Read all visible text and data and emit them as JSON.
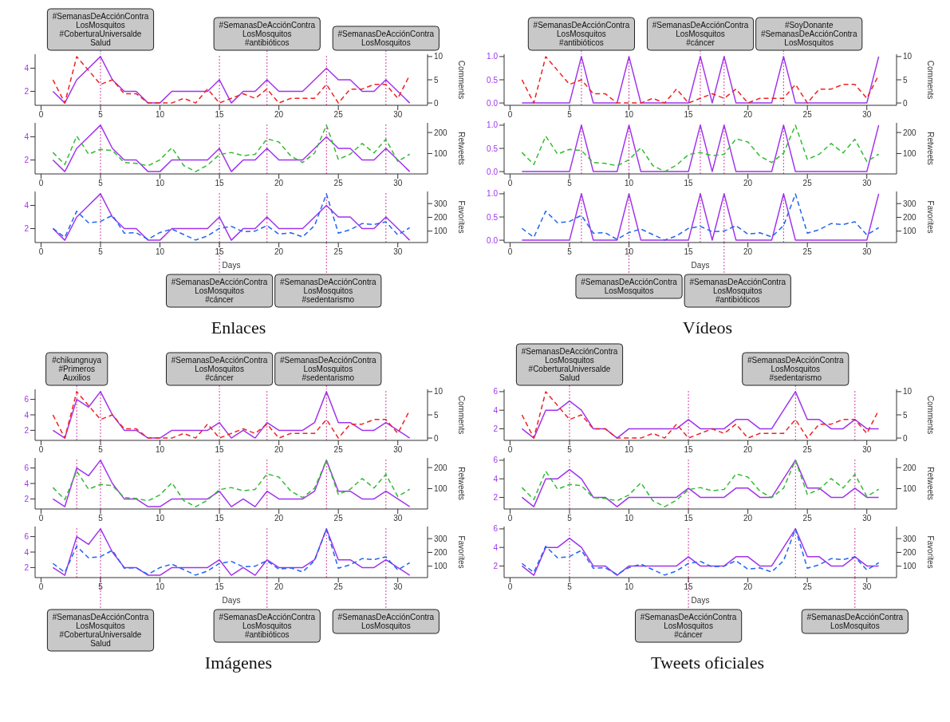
{
  "chart_data": [
    {
      "type": "line",
      "x": [
        1,
        2,
        3,
        4,
        5,
        6,
        7,
        8,
        9,
        10,
        11,
        12,
        13,
        14,
        15,
        16,
        17,
        18,
        19,
        20,
        21,
        22,
        23,
        24,
        25,
        26,
        27,
        28,
        29,
        30,
        31
      ],
      "xlim": [
        -0.5,
        32.5
      ],
      "xticks": [
        0,
        5,
        10,
        15,
        20,
        25,
        30
      ],
      "ylim": [
        0.8,
        5.2
      ],
      "yticks": [
        2,
        4
      ],
      "y2lim": [
        -0.5,
        10.5
      ],
      "y2ticks": [
        0,
        5,
        10
      ],
      "y2label": "Comments",
      "series": [
        {
          "color": "#a033ee",
          "line_style": "solid",
          "values": [
            2,
            1,
            3,
            4,
            5,
            3,
            2,
            2,
            1,
            1,
            2,
            2,
            2,
            2,
            3,
            1,
            2,
            2,
            3,
            2,
            2,
            2,
            3,
            4,
            3,
            3,
            2,
            2,
            3,
            2,
            1
          ]
        },
        {
          "color": "#ee2222",
          "line_style": "dashed",
          "axis": "y2",
          "values": [
            5,
            0,
            10,
            7,
            4,
            5,
            2,
            2,
            0,
            0,
            0,
            1,
            0,
            3,
            0,
            1,
            2,
            1,
            3,
            0,
            1,
            1,
            1,
            4,
            0,
            3,
            3,
            4,
            4,
            1,
            6
          ]
        }
      ],
      "ref_lines": [
        {
          "axis": "x",
          "value": 5,
          "color": "#d040a0",
          "line_style": "dotted",
          "label": "#SemanasDeAcciónContra\nLosMosquitos\n#CoberturaUniversalde\nSalud"
        },
        {
          "axis": "x",
          "value": 15,
          "color": "#d040a0",
          "line_style": "dotted"
        },
        {
          "axis": "x",
          "value": 19,
          "color": "#d040a0",
          "line_style": "dotted",
          "label": "#SemanasDeAcciónContra\nLosMosquitos\n#antibióticos"
        },
        {
          "axis": "x",
          "value": 24,
          "color": "#d040a0",
          "line_style": "dotted"
        },
        {
          "axis": "x",
          "value": 29,
          "color": "#d040a0",
          "line_style": "dotted",
          "label": "#SemanasDeAcciónContra\nLosMosquitos"
        }
      ]
    },
    {
      "type": "line",
      "x": [
        1,
        2,
        3,
        4,
        5,
        6,
        7,
        8,
        9,
        10,
        11,
        12,
        13,
        14,
        15,
        16,
        17,
        18,
        19,
        20,
        21,
        22,
        23,
        24,
        25,
        26,
        27,
        28,
        29,
        30,
        31
      ],
      "xlim": [
        -0.5,
        32.5
      ],
      "xticks": [
        0,
        5,
        10,
        15,
        20,
        25,
        30
      ],
      "ylim": [
        0.8,
        5.2
      ],
      "yticks": [
        2,
        4
      ],
      "y2lim": [
        3,
        246
      ],
      "y2ticks": [
        100,
        200
      ],
      "y2label": "Retweets",
      "series": [
        {
          "color": "#a033ee",
          "line_style": "solid",
          "values": [
            2,
            1,
            3,
            4,
            5,
            3,
            2,
            2,
            1,
            1,
            2,
            2,
            2,
            2,
            3,
            1,
            2,
            2,
            3,
            2,
            2,
            2,
            3,
            4,
            3,
            3,
            2,
            2,
            3,
            2,
            1
          ]
        },
        {
          "color": "#33bb33",
          "line_style": "dashed",
          "axis": "y2",
          "values": [
            105,
            48,
            183,
            97,
            120,
            114,
            57,
            53,
            42,
            70,
            128,
            43,
            14,
            45,
            95,
            105,
            90,
            96,
            170,
            155,
            88,
            57,
            102,
            235,
            72,
            97,
            148,
            103,
            168,
            62,
            97
          ]
        }
      ],
      "ref_lines": [
        {
          "axis": "x",
          "value": 5,
          "color": "#d040a0",
          "line_style": "dotted"
        },
        {
          "axis": "x",
          "value": 15,
          "color": "#d040a0",
          "line_style": "dotted"
        },
        {
          "axis": "x",
          "value": 19,
          "color": "#d040a0",
          "line_style": "dotted"
        },
        {
          "axis": "x",
          "value": 24,
          "color": "#d040a0",
          "line_style": "dotted"
        },
        {
          "axis": "x",
          "value": 29,
          "color": "#d040a0",
          "line_style": "dotted"
        }
      ]
    },
    {
      "type": "line",
      "x": [
        1,
        2,
        3,
        4,
        5,
        6,
        7,
        8,
        9,
        10,
        11,
        12,
        13,
        14,
        15,
        16,
        17,
        18,
        19,
        20,
        21,
        22,
        23,
        24,
        25,
        26,
        27,
        28,
        29,
        30,
        31
      ],
      "xlim": [
        -0.5,
        32.5
      ],
      "xticks": [
        0,
        5,
        10,
        15,
        20,
        25,
        30
      ],
      "xlabel": "Days",
      "ylim": [
        0.8,
        5.2
      ],
      "yticks": [
        2,
        4
      ],
      "y2lim": [
        17,
        388
      ],
      "y2ticks": [
        100,
        200,
        300
      ],
      "y2label": "Favorites",
      "annotations": [
        "Enlaces"
      ],
      "series": [
        {
          "color": "#a033ee",
          "line_style": "solid",
          "values": [
            2,
            1,
            3,
            4,
            5,
            3,
            2,
            2,
            1,
            1,
            2,
            2,
            2,
            2,
            3,
            1,
            2,
            2,
            3,
            2,
            2,
            2,
            3,
            4,
            3,
            3,
            2,
            2,
            3,
            2,
            1
          ]
        },
        {
          "color": "#2266ee",
          "line_style": "dashed",
          "axis": "y2",
          "values": [
            120,
            55,
            245,
            160,
            170,
            215,
            85,
            88,
            40,
            90,
            115,
            75,
            35,
            65,
            120,
            135,
            95,
            100,
            140,
            78,
            88,
            58,
            140,
            370,
            85,
            110,
            155,
            148,
            168,
            72,
            125
          ]
        }
      ],
      "ref_lines": [
        {
          "axis": "x",
          "value": 5,
          "color": "#d040a0",
          "line_style": "dotted"
        },
        {
          "axis": "x",
          "value": 15,
          "color": "#d040a0",
          "line_style": "dotted",
          "label": "#SemanasDeAcciónContra\nLosMosquitos\n#cáncer"
        },
        {
          "axis": "x",
          "value": 19,
          "color": "#d040a0",
          "line_style": "dotted"
        },
        {
          "axis": "x",
          "value": 24,
          "color": "#d040a0",
          "line_style": "dotted",
          "label": "#SemanasDeAcciónContra\nLosMosquitos\n#sedentarismo"
        },
        {
          "axis": "x",
          "value": 29,
          "color": "#d040a0",
          "line_style": "dotted"
        }
      ]
    },
    {
      "type": "line",
      "x": [
        1,
        2,
        3,
        4,
        5,
        6,
        7,
        8,
        9,
        10,
        11,
        12,
        13,
        14,
        15,
        16,
        17,
        18,
        19,
        20,
        21,
        22,
        23,
        24,
        25,
        26,
        27,
        28,
        29,
        30,
        31
      ],
      "xlim": [
        -0.5,
        32.5
      ],
      "xticks": [
        0,
        5,
        10,
        15,
        20,
        25,
        30
      ],
      "ylim": [
        -0.05,
        1.05
      ],
      "yticks": [
        {
          "value": 0,
          "label": "0.0"
        },
        {
          "value": 0.5,
          "label": "0.5"
        },
        {
          "value": 1,
          "label": "1.0"
        }
      ],
      "y2lim": [
        -0.5,
        10.5
      ],
      "y2ticks": [
        0,
        5,
        10
      ],
      "y2label": "Comments",
      "series": [
        {
          "color": "#a033ee",
          "line_style": "solid",
          "values": [
            0,
            0,
            0,
            0,
            0,
            1,
            0,
            0,
            0,
            1,
            0,
            0,
            0,
            0,
            0,
            1,
            0,
            1,
            0,
            0,
            0,
            0,
            1,
            0,
            0,
            0,
            0,
            0,
            0,
            0,
            1
          ]
        },
        {
          "color": "#ee2222",
          "line_style": "dashed",
          "axis": "y2",
          "values": [
            5,
            0,
            10,
            7,
            4,
            5,
            2,
            2,
            0,
            0,
            0,
            1,
            0,
            3,
            0,
            1,
            2,
            1,
            3,
            0,
            1,
            1,
            1,
            4,
            0,
            3,
            3,
            4,
            4,
            1,
            6
          ]
        }
      ],
      "ref_lines": [
        {
          "axis": "x",
          "value": 6,
          "color": "#d040a0",
          "line_style": "dotted",
          "label": "#SemanasDeAcciónContra\nLosMosquitos\n#antibióticos"
        },
        {
          "axis": "x",
          "value": 10,
          "color": "#d040a0",
          "line_style": "dotted"
        },
        {
          "axis": "x",
          "value": 16,
          "color": "#d040a0",
          "line_style": "dotted",
          "label": "#SemanasDeAcciónContra\nLosMosquitos\n#cáncer"
        },
        {
          "axis": "x",
          "value": 18,
          "color": "#d040a0",
          "line_style": "dotted"
        },
        {
          "axis": "x",
          "value": 23,
          "color": "#d040a0",
          "line_style": "dotted",
          "label": "#SoyDonante\n#SemanasDeAcciónContra\nLosMosquitos"
        }
      ]
    },
    {
      "type": "line",
      "x": [
        1,
        2,
        3,
        4,
        5,
        6,
        7,
        8,
        9,
        10,
        11,
        12,
        13,
        14,
        15,
        16,
        17,
        18,
        19,
        20,
        21,
        22,
        23,
        24,
        25,
        26,
        27,
        28,
        29,
        30,
        31
      ],
      "xlim": [
        -0.5,
        32.5
      ],
      "xticks": [
        0,
        5,
        10,
        15,
        20,
        25,
        30
      ],
      "ylim": [
        -0.05,
        1.05
      ],
      "yticks": [
        {
          "value": 0,
          "label": "0.0"
        },
        {
          "value": 0.5,
          "label": "0.5"
        },
        {
          "value": 1,
          "label": "1.0"
        }
      ],
      "y2lim": [
        3,
        246
      ],
      "y2ticks": [
        100,
        200
      ],
      "y2label": "Retweets",
      "series": [
        {
          "color": "#a033ee",
          "line_style": "solid",
          "values": [
            0,
            0,
            0,
            0,
            0,
            1,
            0,
            0,
            0,
            1,
            0,
            0,
            0,
            0,
            0,
            1,
            0,
            1,
            0,
            0,
            0,
            0,
            1,
            0,
            0,
            0,
            0,
            0,
            0,
            0,
            1
          ]
        },
        {
          "color": "#33bb33",
          "line_style": "dashed",
          "axis": "y2",
          "values": [
            105,
            48,
            183,
            97,
            120,
            114,
            57,
            53,
            42,
            70,
            128,
            43,
            14,
            45,
            95,
            105,
            90,
            96,
            170,
            155,
            88,
            57,
            102,
            235,
            72,
            97,
            148,
            103,
            168,
            62,
            97
          ]
        }
      ],
      "ref_lines": [
        {
          "axis": "x",
          "value": 6,
          "color": "#d040a0",
          "line_style": "dotted"
        },
        {
          "axis": "x",
          "value": 10,
          "color": "#d040a0",
          "line_style": "dotted"
        },
        {
          "axis": "x",
          "value": 16,
          "color": "#d040a0",
          "line_style": "dotted"
        },
        {
          "axis": "x",
          "value": 18,
          "color": "#d040a0",
          "line_style": "dotted"
        },
        {
          "axis": "x",
          "value": 23,
          "color": "#d040a0",
          "line_style": "dotted"
        }
      ]
    },
    {
      "type": "line",
      "x": [
        1,
        2,
        3,
        4,
        5,
        6,
        7,
        8,
        9,
        10,
        11,
        12,
        13,
        14,
        15,
        16,
        17,
        18,
        19,
        20,
        21,
        22,
        23,
        24,
        25,
        26,
        27,
        28,
        29,
        30,
        31
      ],
      "xlim": [
        -0.5,
        32.5
      ],
      "xticks": [
        0,
        5,
        10,
        15,
        20,
        25,
        30
      ],
      "xlabel": "Days",
      "ylim": [
        -0.05,
        1.05
      ],
      "yticks": [
        {
          "value": 0,
          "label": "0.0"
        },
        {
          "value": 0.5,
          "label": "0.5"
        },
        {
          "value": 1,
          "label": "1.0"
        }
      ],
      "y2lim": [
        17,
        388
      ],
      "y2ticks": [
        100,
        200,
        300
      ],
      "y2label": "Favorites",
      "annotations": [
        "Vídeos"
      ],
      "series": [
        {
          "color": "#a033ee",
          "line_style": "solid",
          "values": [
            0,
            0,
            0,
            0,
            0,
            1,
            0,
            0,
            0,
            1,
            0,
            0,
            0,
            0,
            0,
            1,
            0,
            1,
            0,
            0,
            0,
            0,
            1,
            0,
            0,
            0,
            0,
            0,
            0,
            0,
            1
          ]
        },
        {
          "color": "#2266ee",
          "line_style": "dashed",
          "axis": "y2",
          "values": [
            120,
            55,
            245,
            160,
            170,
            215,
            85,
            88,
            40,
            90,
            115,
            75,
            35,
            65,
            120,
            135,
            95,
            100,
            140,
            78,
            88,
            58,
            140,
            370,
            85,
            110,
            155,
            148,
            168,
            72,
            125
          ]
        }
      ],
      "ref_lines": [
        {
          "axis": "x",
          "value": 6,
          "color": "#d040a0",
          "line_style": "dotted"
        },
        {
          "axis": "x",
          "value": 10,
          "color": "#d040a0",
          "line_style": "dotted",
          "label": "#SemanasDeAcciónContra\nLosMosquitos"
        },
        {
          "axis": "x",
          "value": 16,
          "color": "#d040a0",
          "line_style": "dotted"
        },
        {
          "axis": "x",
          "value": 18,
          "color": "#d040a0",
          "line_style": "dotted",
          "label": "#SemanasDeAcciónContra\nLosMosquitos\n#antibióticos"
        },
        {
          "axis": "x",
          "value": 23,
          "color": "#d040a0",
          "line_style": "dotted"
        }
      ]
    },
    {
      "type": "line",
      "x": [
        1,
        2,
        3,
        4,
        5,
        6,
        7,
        8,
        9,
        10,
        11,
        12,
        13,
        14,
        15,
        16,
        17,
        18,
        19,
        20,
        21,
        22,
        23,
        24,
        25,
        26,
        27,
        28,
        29,
        30,
        31
      ],
      "xlim": [
        -0.5,
        32.5
      ],
      "xticks": [
        0,
        5,
        10,
        15,
        20,
        25,
        30
      ],
      "ylim": [
        0.7,
        7.3
      ],
      "yticks": [
        2,
        4,
        6
      ],
      "y2lim": [
        -0.5,
        10.5
      ],
      "y2ticks": [
        0,
        5,
        10
      ],
      "y2label": "Comments",
      "series": [
        {
          "color": "#a033ee",
          "line_style": "solid",
          "values": [
            2,
            1,
            6,
            5,
            7,
            4,
            2,
            2,
            1,
            1,
            2,
            2,
            2,
            2,
            3,
            1,
            2,
            1,
            3,
            2,
            2,
            2,
            3,
            7,
            3,
            3,
            2,
            2,
            3,
            2,
            1
          ]
        },
        {
          "color": "#ee2222",
          "line_style": "dashed",
          "axis": "y2",
          "values": [
            5,
            0,
            10,
            7,
            4,
            5,
            2,
            2,
            0,
            0,
            0,
            1,
            0,
            3,
            0,
            1,
            2,
            1,
            3,
            0,
            1,
            1,
            1,
            4,
            0,
            3,
            3,
            4,
            4,
            1,
            6
          ]
        }
      ],
      "ref_lines": [
        {
          "axis": "x",
          "value": 3,
          "color": "#d040a0",
          "line_style": "dotted",
          "label": "#chikungnuya\n#Primeros\nAuxilios"
        },
        {
          "axis": "x",
          "value": 5,
          "color": "#d040a0",
          "line_style": "dotted"
        },
        {
          "axis": "x",
          "value": 15,
          "color": "#d040a0",
          "line_style": "dotted",
          "label": "#SemanasDeAcciónContra\nLosMosquitos\n#cáncer"
        },
        {
          "axis": "x",
          "value": 19,
          "color": "#d040a0",
          "line_style": "dotted"
        },
        {
          "axis": "x",
          "value": 24,
          "color": "#d040a0",
          "line_style": "dotted",
          "label": "#SemanasDeAcciónContra\nLosMosquitos\n#sedentarismo"
        },
        {
          "axis": "x",
          "value": 29,
          "color": "#d040a0",
          "line_style": "dotted"
        }
      ]
    },
    {
      "type": "line",
      "x": [
        1,
        2,
        3,
        4,
        5,
        6,
        7,
        8,
        9,
        10,
        11,
        12,
        13,
        14,
        15,
        16,
        17,
        18,
        19,
        20,
        21,
        22,
        23,
        24,
        25,
        26,
        27,
        28,
        29,
        30,
        31
      ],
      "xlim": [
        -0.5,
        32.5
      ],
      "xticks": [
        0,
        5,
        10,
        15,
        20,
        25,
        30
      ],
      "ylim": [
        0.7,
        7.3
      ],
      "yticks": [
        2,
        4,
        6
      ],
      "y2lim": [
        3,
        246
      ],
      "y2ticks": [
        100,
        200
      ],
      "y2label": "Retweets",
      "series": [
        {
          "color": "#a033ee",
          "line_style": "solid",
          "values": [
            2,
            1,
            6,
            5,
            7,
            4,
            2,
            2,
            1,
            1,
            2,
            2,
            2,
            2,
            3,
            1,
            2,
            1,
            3,
            2,
            2,
            2,
            3,
            7,
            3,
            3,
            2,
            2,
            3,
            2,
            1
          ]
        },
        {
          "color": "#33bb33",
          "line_style": "dashed",
          "axis": "y2",
          "values": [
            105,
            48,
            183,
            97,
            120,
            114,
            57,
            53,
            42,
            70,
            128,
            43,
            14,
            45,
            95,
            105,
            90,
            96,
            170,
            155,
            88,
            57,
            102,
            235,
            72,
            97,
            148,
            103,
            168,
            62,
            97
          ]
        }
      ],
      "ref_lines": [
        {
          "axis": "x",
          "value": 3,
          "color": "#d040a0",
          "line_style": "dotted"
        },
        {
          "axis": "x",
          "value": 5,
          "color": "#d040a0",
          "line_style": "dotted"
        },
        {
          "axis": "x",
          "value": 15,
          "color": "#d040a0",
          "line_style": "dotted"
        },
        {
          "axis": "x",
          "value": 19,
          "color": "#d040a0",
          "line_style": "dotted"
        },
        {
          "axis": "x",
          "value": 24,
          "color": "#d040a0",
          "line_style": "dotted"
        },
        {
          "axis": "x",
          "value": 29,
          "color": "#d040a0",
          "line_style": "dotted"
        }
      ]
    },
    {
      "type": "line",
      "x": [
        1,
        2,
        3,
        4,
        5,
        6,
        7,
        8,
        9,
        10,
        11,
        12,
        13,
        14,
        15,
        16,
        17,
        18,
        19,
        20,
        21,
        22,
        23,
        24,
        25,
        26,
        27,
        28,
        29,
        30,
        31
      ],
      "xlim": [
        -0.5,
        32.5
      ],
      "xticks": [
        0,
        5,
        10,
        15,
        20,
        25,
        30
      ],
      "xlabel": "Days",
      "ylim": [
        0.7,
        7.3
      ],
      "yticks": [
        2,
        4,
        6
      ],
      "y2lim": [
        17,
        388
      ],
      "y2ticks": [
        100,
        200,
        300
      ],
      "y2label": "Favorites",
      "annotations": [
        "Imágenes"
      ],
      "series": [
        {
          "color": "#a033ee",
          "line_style": "solid",
          "values": [
            2,
            1,
            6,
            5,
            7,
            4,
            2,
            2,
            1,
            1,
            2,
            2,
            2,
            2,
            3,
            1,
            2,
            1,
            3,
            2,
            2,
            2,
            3,
            7,
            3,
            3,
            2,
            2,
            3,
            2,
            1
          ]
        },
        {
          "color": "#2266ee",
          "line_style": "dashed",
          "axis": "y2",
          "values": [
            120,
            55,
            245,
            160,
            170,
            215,
            85,
            88,
            40,
            90,
            115,
            75,
            35,
            65,
            120,
            135,
            95,
            100,
            140,
            78,
            88,
            58,
            140,
            370,
            85,
            110,
            155,
            148,
            168,
            72,
            125
          ]
        }
      ],
      "ref_lines": [
        {
          "axis": "x",
          "value": 3,
          "color": "#d040a0",
          "line_style": "dotted"
        },
        {
          "axis": "x",
          "value": 5,
          "color": "#d040a0",
          "line_style": "dotted",
          "label": "#SemanasDeAcciónContra\nLosMosquitos\n#CoberturaUniversalde\nSalud"
        },
        {
          "axis": "x",
          "value": 15,
          "color": "#d040a0",
          "line_style": "dotted"
        },
        {
          "axis": "x",
          "value": 19,
          "color": "#d040a0",
          "line_style": "dotted",
          "label": "#SemanasDeAcciónContra\nLosMosquitos\n#antibióticos"
        },
        {
          "axis": "x",
          "value": 24,
          "color": "#d040a0",
          "line_style": "dotted"
        },
        {
          "axis": "x",
          "value": 29,
          "color": "#d040a0",
          "line_style": "dotted",
          "label": "#SemanasDeAcciónContra\nLosMosquitos"
        }
      ]
    },
    {
      "type": "line",
      "x": [
        1,
        2,
        3,
        4,
        5,
        6,
        7,
        8,
        9,
        10,
        11,
        12,
        13,
        14,
        15,
        16,
        17,
        18,
        19,
        20,
        21,
        22,
        23,
        24,
        25,
        26,
        27,
        28,
        29,
        30,
        31
      ],
      "xlim": [
        -0.5,
        32.5
      ],
      "xticks": [
        0,
        5,
        10,
        15,
        20,
        25,
        30
      ],
      "ylim": [
        0.75,
        6.25
      ],
      "yticks": [
        2,
        4,
        6
      ],
      "y2lim": [
        -0.5,
        10.5
      ],
      "y2ticks": [
        0,
        5,
        10
      ],
      "y2label": "Comments",
      "series": [
        {
          "color": "#a033ee",
          "line_style": "solid",
          "values": [
            2,
            1,
            4,
            4,
            5,
            4,
            2,
            2,
            1,
            2,
            2,
            2,
            2,
            2,
            3,
            2,
            2,
            2,
            3,
            3,
            2,
            2,
            4,
            6,
            3,
            3,
            2,
            2,
            3,
            2,
            2
          ]
        },
        {
          "color": "#ee2222",
          "line_style": "dashed",
          "axis": "y2",
          "values": [
            5,
            0,
            10,
            7,
            4,
            5,
            2,
            2,
            0,
            0,
            0,
            1,
            0,
            3,
            0,
            1,
            2,
            1,
            3,
            0,
            1,
            1,
            1,
            4,
            0,
            3,
            3,
            4,
            4,
            1,
            6
          ]
        }
      ],
      "ref_lines": [
        {
          "axis": "x",
          "value": 5,
          "color": "#d040a0",
          "line_style": "dotted",
          "label": "#SemanasDeAcciónContra\nLosMosquitos\n#CoberturaUniversalde\nSalud"
        },
        {
          "axis": "x",
          "value": 15,
          "color": "#d040a0",
          "line_style": "dotted"
        },
        {
          "axis": "x",
          "value": 24,
          "color": "#d040a0",
          "line_style": "dotted",
          "label": "#SemanasDeAcciónContra\nLosMosquitos\n#sedentarismo"
        },
        {
          "axis": "x",
          "value": 29,
          "color": "#d040a0",
          "line_style": "dotted"
        }
      ]
    },
    {
      "type": "line",
      "x": [
        1,
        2,
        3,
        4,
        5,
        6,
        7,
        8,
        9,
        10,
        11,
        12,
        13,
        14,
        15,
        16,
        17,
        18,
        19,
        20,
        21,
        22,
        23,
        24,
        25,
        26,
        27,
        28,
        29,
        30,
        31
      ],
      "xlim": [
        -0.5,
        32.5
      ],
      "xticks": [
        0,
        5,
        10,
        15,
        20,
        25,
        30
      ],
      "ylim": [
        0.75,
        6.25
      ],
      "yticks": [
        2,
        4,
        6
      ],
      "y2lim": [
        3,
        246
      ],
      "y2ticks": [
        100,
        200
      ],
      "y2label": "Retweets",
      "series": [
        {
          "color": "#a033ee",
          "line_style": "solid",
          "values": [
            2,
            1,
            4,
            4,
            5,
            4,
            2,
            2,
            1,
            2,
            2,
            2,
            2,
            2,
            3,
            2,
            2,
            2,
            3,
            3,
            2,
            2,
            4,
            6,
            3,
            3,
            2,
            2,
            3,
            2,
            2
          ]
        },
        {
          "color": "#33bb33",
          "line_style": "dashed",
          "axis": "y2",
          "values": [
            105,
            48,
            183,
            97,
            120,
            114,
            57,
            53,
            42,
            70,
            128,
            43,
            14,
            45,
            95,
            105,
            90,
            96,
            170,
            155,
            88,
            57,
            102,
            235,
            72,
            97,
            148,
            103,
            168,
            62,
            97
          ]
        }
      ],
      "ref_lines": [
        {
          "axis": "x",
          "value": 5,
          "color": "#d040a0",
          "line_style": "dotted"
        },
        {
          "axis": "x",
          "value": 15,
          "color": "#d040a0",
          "line_style": "dotted"
        },
        {
          "axis": "x",
          "value": 24,
          "color": "#d040a0",
          "line_style": "dotted"
        },
        {
          "axis": "x",
          "value": 29,
          "color": "#d040a0",
          "line_style": "dotted"
        }
      ]
    },
    {
      "type": "line",
      "x": [
        1,
        2,
        3,
        4,
        5,
        6,
        7,
        8,
        9,
        10,
        11,
        12,
        13,
        14,
        15,
        16,
        17,
        18,
        19,
        20,
        21,
        22,
        23,
        24,
        25,
        26,
        27,
        28,
        29,
        30,
        31
      ],
      "xlim": [
        -0.5,
        32.5
      ],
      "xticks": [
        0,
        5,
        10,
        15,
        20,
        25,
        30
      ],
      "xlabel": "Days",
      "ylim": [
        0.75,
        6.25
      ],
      "yticks": [
        2,
        4,
        6
      ],
      "y2lim": [
        17,
        388
      ],
      "y2ticks": [
        100,
        200,
        300
      ],
      "y2label": "Favorites",
      "annotations": [
        "Tweets oficiales"
      ],
      "series": [
        {
          "color": "#a033ee",
          "line_style": "solid",
          "values": [
            2,
            1,
            4,
            4,
            5,
            4,
            2,
            2,
            1,
            2,
            2,
            2,
            2,
            2,
            3,
            2,
            2,
            2,
            3,
            3,
            2,
            2,
            4,
            6,
            3,
            3,
            2,
            2,
            3,
            2,
            2
          ]
        },
        {
          "color": "#2266ee",
          "line_style": "dashed",
          "axis": "y2",
          "values": [
            120,
            55,
            245,
            160,
            170,
            215,
            85,
            88,
            40,
            90,
            115,
            75,
            35,
            65,
            120,
            135,
            95,
            100,
            140,
            78,
            88,
            58,
            140,
            370,
            85,
            110,
            155,
            148,
            168,
            72,
            125
          ]
        }
      ],
      "ref_lines": [
        {
          "axis": "x",
          "value": 5,
          "color": "#d040a0",
          "line_style": "dotted"
        },
        {
          "axis": "x",
          "value": 15,
          "color": "#d040a0",
          "line_style": "dotted",
          "label": "#SemanasDeAcciónContra\nLosMosquitos\n#cáncer"
        },
        {
          "axis": "x",
          "value": 24,
          "color": "#d040a0",
          "line_style": "dotted"
        },
        {
          "axis": "x",
          "value": 29,
          "color": "#d040a0",
          "line_style": "dotted",
          "label": "#SemanasDeAcciónContra\nLosMosquitos"
        }
      ]
    }
  ]
}
